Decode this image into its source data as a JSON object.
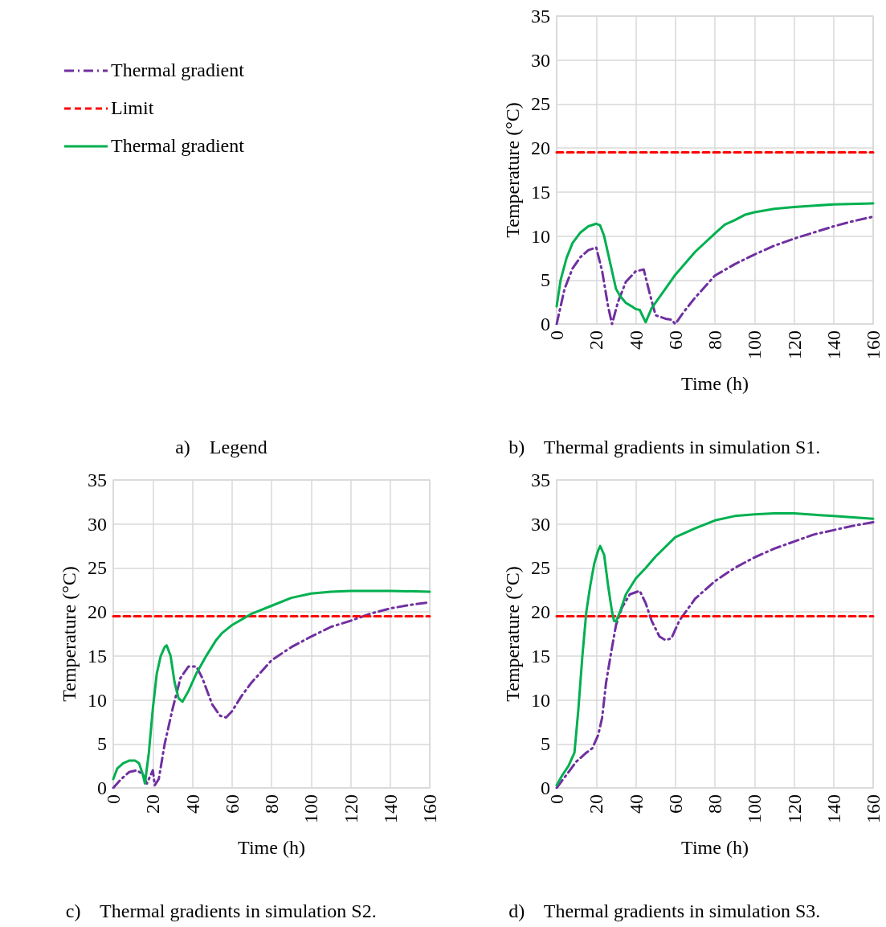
{
  "chart_data": [
    {
      "type": "other",
      "legend": "top left",
      "annotations": [
        "a)    Legend"
      ],
      "series": [
        {
          "name": "Thermal gradient",
          "color": "#7030a0",
          "line_style": "dashdot"
        },
        {
          "name": "Limit",
          "color": "#ff0000",
          "line_style": "dashed"
        },
        {
          "name": "Thermal gradient",
          "color": "#00b050",
          "line_style": "solid"
        }
      ]
    },
    {
      "type": "line",
      "xlabel": "Time (h)",
      "ylabel": "Temperature (°C)",
      "annotations": [
        "b)    Thermal gradients in simulation S1."
      ],
      "xlim": [
        0,
        160
      ],
      "xticks": [
        0,
        20,
        40,
        60,
        80,
        100,
        120,
        140,
        160
      ],
      "ylim": [
        0,
        35
      ],
      "yticks": [
        0,
        5,
        10,
        15,
        20,
        25,
        30,
        35
      ],
      "grid": true,
      "marker": "none",
      "series": [
        {
          "color": "#7030a0",
          "line_style": "dashdot",
          "x": [
            0,
            4,
            8,
            12,
            16,
            20,
            23,
            26,
            28,
            31,
            35,
            40,
            44,
            47,
            50,
            55,
            58,
            60,
            64,
            70,
            80,
            90,
            100,
            110,
            120,
            130,
            140,
            150,
            160
          ],
          "values": [
            0,
            4,
            6.3,
            7.6,
            8.4,
            8.7,
            6,
            2,
            0,
            2.5,
            4.8,
            6,
            6.2,
            3.5,
            1,
            0.6,
            0.5,
            0,
            1.3,
            3,
            5.5,
            6.8,
            7.9,
            8.9,
            9.7,
            10.4,
            11.1,
            11.7,
            12.2
          ]
        },
        {
          "color": "#ff0000",
          "line_style": "dashed",
          "x": [
            0,
            160
          ],
          "values": [
            19.5,
            19.5
          ]
        },
        {
          "color": "#00b050",
          "line_style": "solid",
          "x": [
            0,
            2,
            5,
            8,
            12,
            16,
            20,
            22,
            24,
            27,
            30,
            32,
            35,
            38,
            40,
            42,
            45,
            48,
            55,
            60,
            70,
            80,
            85,
            90,
            95,
            100,
            110,
            120,
            140,
            160
          ],
          "values": [
            2,
            5,
            7.5,
            9.2,
            10.4,
            11.1,
            11.4,
            11.2,
            10,
            7,
            4,
            3.2,
            2.4,
            2,
            1.7,
            1.6,
            0.2,
            1.8,
            4,
            5.6,
            8.2,
            10.3,
            11.3,
            11.8,
            12.4,
            12.7,
            13.1,
            13.3,
            13.6,
            13.7
          ]
        }
      ]
    },
    {
      "type": "line",
      "xlabel": "Time (h)",
      "ylabel": "Temperature (°C)",
      "annotations": [
        "c)    Thermal gradients in simulation S2."
      ],
      "xlim": [
        0,
        160
      ],
      "xticks": [
        0,
        20,
        40,
        60,
        80,
        100,
        120,
        140,
        160
      ],
      "ylim": [
        0,
        35
      ],
      "yticks": [
        0,
        5,
        10,
        15,
        20,
        25,
        30,
        35
      ],
      "grid": true,
      "marker": "none",
      "series": [
        {
          "color": "#7030a0",
          "line_style": "dashdot",
          "x": [
            0,
            4,
            8,
            12,
            15,
            17,
            20,
            21,
            23,
            26,
            30,
            34,
            38,
            42,
            45,
            50,
            54,
            57,
            60,
            65,
            70,
            80,
            90,
            100,
            110,
            120,
            130,
            140,
            150,
            160
          ],
          "values": [
            0,
            1,
            1.8,
            2,
            1.5,
            0.5,
            2,
            0.3,
            1,
            5,
            9,
            12.5,
            13.8,
            13.8,
            12.5,
            9.5,
            8.2,
            8,
            8.7,
            10.5,
            12,
            14.5,
            16,
            17.2,
            18.3,
            19,
            19.8,
            20.4,
            20.8,
            21.1
          ]
        },
        {
          "color": "#ff0000",
          "line_style": "dashed",
          "x": [
            0,
            160
          ],
          "values": [
            19.5,
            19.5
          ]
        },
        {
          "color": "#00b050",
          "line_style": "solid",
          "x": [
            0,
            2,
            5,
            8,
            11,
            13,
            15,
            16,
            18,
            20,
            22,
            24,
            26,
            27,
            29,
            31,
            33,
            35,
            38,
            42,
            47,
            52,
            55,
            60,
            70,
            80,
            90,
            100,
            110,
            120,
            140,
            160
          ],
          "values": [
            1,
            2.2,
            2.8,
            3.1,
            3.1,
            2.8,
            1.5,
            0.5,
            4,
            9,
            13,
            15,
            16,
            16.2,
            15,
            12,
            10.2,
            9.8,
            11,
            13,
            15,
            16.8,
            17.6,
            18.5,
            19.8,
            20.7,
            21.6,
            22.1,
            22.3,
            22.4,
            22.4,
            22.3
          ]
        }
      ]
    },
    {
      "type": "line",
      "xlabel": "Time (h)",
      "ylabel": "Temperature (°C)",
      "annotations": [
        "d)    Thermal gradients in simulation S3."
      ],
      "xlim": [
        0,
        160
      ],
      "xticks": [
        0,
        20,
        40,
        60,
        80,
        100,
        120,
        140,
        160
      ],
      "ylim": [
        0,
        35
      ],
      "yticks": [
        0,
        5,
        10,
        15,
        20,
        25,
        30,
        35
      ],
      "grid": true,
      "marker": "none",
      "series": [
        {
          "color": "#7030a0",
          "line_style": "dashdot",
          "x": [
            0,
            5,
            10,
            15,
            18,
            21,
            23,
            25,
            28,
            30,
            33,
            37,
            42,
            45,
            48,
            52,
            55,
            58,
            62,
            70,
            80,
            90,
            100,
            110,
            120,
            130,
            140,
            150,
            160
          ],
          "values": [
            0,
            1.5,
            3,
            4,
            4.5,
            6,
            8,
            12,
            16,
            18.5,
            20.5,
            22,
            22.4,
            21,
            19,
            17.2,
            16.8,
            17,
            19,
            21.5,
            23.5,
            25,
            26.2,
            27.2,
            28,
            28.8,
            29.3,
            29.8,
            30.2
          ]
        },
        {
          "color": "#ff0000",
          "line_style": "dashed",
          "x": [
            0,
            160
          ],
          "values": [
            19.5,
            19.5
          ]
        },
        {
          "color": "#00b050",
          "line_style": "solid",
          "x": [
            0,
            3,
            6,
            9,
            11,
            13,
            15,
            17,
            19,
            21,
            22,
            24,
            26,
            28,
            29,
            30,
            32,
            35,
            40,
            45,
            50,
            60,
            70,
            80,
            90,
            100,
            110,
            120,
            140,
            160
          ],
          "values": [
            0.3,
            1.5,
            2.5,
            4,
            9,
            15,
            20,
            23,
            25.5,
            27,
            27.5,
            26.5,
            23,
            20,
            19,
            18.9,
            20,
            22,
            23.8,
            25,
            26.3,
            28.5,
            29.5,
            30.4,
            30.9,
            31.1,
            31.2,
            31.2,
            30.9,
            30.6
          ]
        }
      ]
    }
  ]
}
